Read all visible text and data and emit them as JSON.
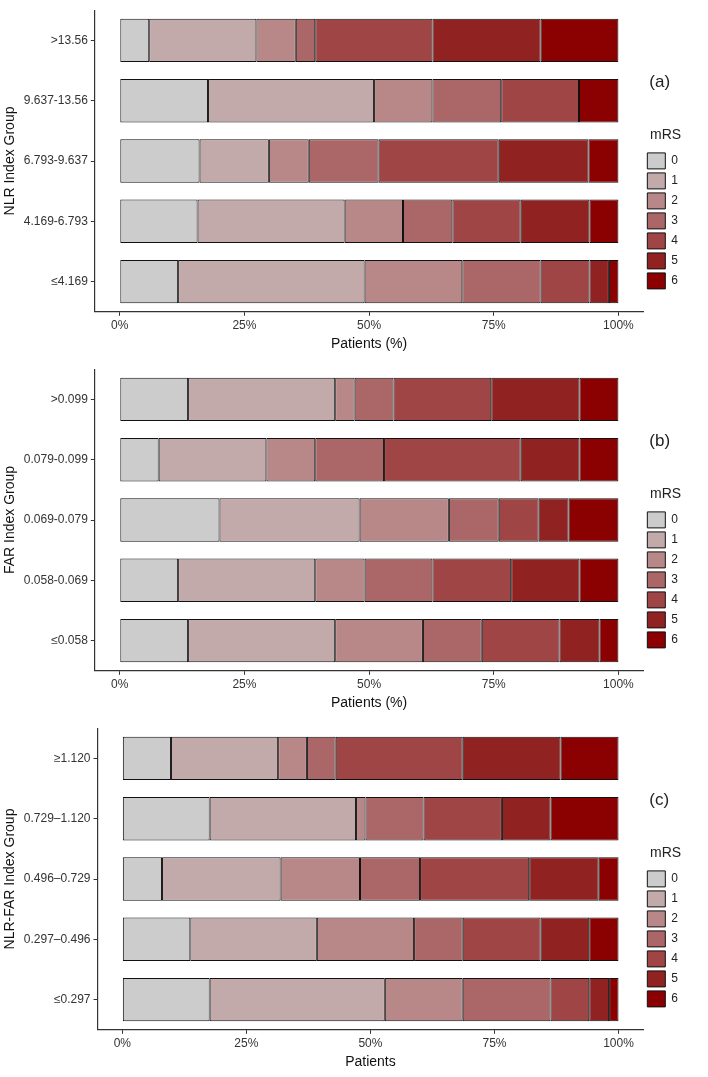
{
  "chart_data": [
    {
      "type": "bar",
      "orientation": "horizontal",
      "stacked": true,
      "ylabel": "NLR Index Group",
      "xlabel": "Patients (%)",
      "legend_title": "mRS",
      "legend": "right",
      "grid": false,
      "annotations": [
        "(a)"
      ],
      "categories": [
        ">13.56",
        "9.637-13.56",
        "6.793-9.637",
        "4.169-6.793",
        "≤4.169"
      ],
      "xlim": [
        -5,
        105
      ],
      "xticks": [
        {
          "value": 0,
          "label": "0%"
        },
        {
          "value": 25,
          "label": "25%"
        },
        {
          "value": 50,
          "label": "50%"
        },
        {
          "value": 75,
          "label": "75%"
        },
        {
          "value": 100,
          "label": "100%"
        }
      ],
      "series": [
        {
          "name": "0",
          "color": "#cccccc",
          "values": [
            5.9,
            17.7,
            16.0,
            15.6,
            11.7
          ]
        },
        {
          "name": "1",
          "color": "#c2aaaa",
          "values": [
            21.5,
            33.3,
            13.9,
            29.5,
            37.4
          ]
        },
        {
          "name": "2",
          "color": "#b88888",
          "values": [
            7.9,
            11.7,
            8.0,
            11.7,
            19.6
          ]
        },
        {
          "name": "3",
          "color": "#ab6767",
          "values": [
            3.9,
            13.8,
            14.0,
            9.9,
            15.7
          ]
        },
        {
          "name": "4",
          "color": "#a04545",
          "values": [
            23.5,
            15.6,
            24.1,
            13.7,
            9.8
          ]
        },
        {
          "name": "5",
          "color": "#912222",
          "values": [
            21.7,
            0,
            18.0,
            13.8,
            3.9
          ]
        },
        {
          "name": "6",
          "color": "#8b0000",
          "values": [
            15.6,
            7.9,
            6.0,
            5.8,
            1.9
          ]
        }
      ]
    },
    {
      "type": "bar",
      "orientation": "horizontal",
      "stacked": true,
      "ylabel": "FAR Index Group",
      "xlabel": "Patients (%)",
      "legend_title": "mRS",
      "legend": "right",
      "grid": false,
      "annotations": [
        "(b)"
      ],
      "categories": [
        ">0.099",
        "0.079-0.099",
        "0.069-0.079",
        "0.058-0.069",
        "≤0.058"
      ],
      "xlim": [
        -5,
        105
      ],
      "xticks": [
        {
          "value": 0,
          "label": "0%"
        },
        {
          "value": 25,
          "label": "25%"
        },
        {
          "value": 50,
          "label": "50%"
        },
        {
          "value": 75,
          "label": "75%"
        },
        {
          "value": 100,
          "label": "100%"
        }
      ],
      "series": [
        {
          "name": "0",
          "color": "#cccccc",
          "values": [
            13.7,
            7.8,
            20.0,
            11.7,
            13.7
          ]
        },
        {
          "name": "1",
          "color": "#c2aaaa",
          "values": [
            29.5,
            21.6,
            28.1,
            27.5,
            29.5
          ]
        },
        {
          "name": "2",
          "color": "#b88888",
          "values": [
            3.9,
            9.8,
            17.9,
            9.9,
            17.6
          ]
        },
        {
          "name": "3",
          "color": "#ab6767",
          "values": [
            7.8,
            13.8,
            10.0,
            13.6,
            11.8
          ]
        },
        {
          "name": "4",
          "color": "#a04545",
          "values": [
            19.6,
            27.4,
            8.0,
            15.8,
            15.6
          ]
        },
        {
          "name": "5",
          "color": "#912222",
          "values": [
            17.7,
            11.8,
            6.0,
            13.7,
            8.0
          ]
        },
        {
          "name": "6",
          "color": "#8b0000",
          "values": [
            7.8,
            7.8,
            10.0,
            7.8,
            3.8
          ]
        }
      ]
    },
    {
      "type": "bar",
      "orientation": "horizontal",
      "stacked": true,
      "ylabel": "NLR-FAR Index Group",
      "xlabel": "Patients",
      "legend_title": "mRS",
      "legend": "right",
      "grid": false,
      "annotations": [
        "(c)"
      ],
      "categories": [
        "≥1.120",
        "0.729–1.120",
        "0.496–0.729",
        "0.297–0.496",
        "≤0.297"
      ],
      "xlim": [
        -5,
        105
      ],
      "xticks": [
        {
          "value": 0,
          "label": "0%"
        },
        {
          "value": 25,
          "label": "25%"
        },
        {
          "value": 50,
          "label": "50%"
        },
        {
          "value": 75,
          "label": "75%"
        },
        {
          "value": 100,
          "label": "100%"
        }
      ],
      "series": [
        {
          "name": "0",
          "color": "#cccccc",
          "values": [
            9.8,
            17.6,
            8.0,
            13.7,
            17.6
          ]
        },
        {
          "name": "1",
          "color": "#c2aaaa",
          "values": [
            21.6,
            29.5,
            23.9,
            25.5,
            35.3
          ]
        },
        {
          "name": "2",
          "color": "#b88888",
          "values": [
            5.8,
            1.9,
            16.0,
            19.6,
            15.7
          ]
        },
        {
          "name": "3",
          "color": "#ab6767",
          "values": [
            5.8,
            11.7,
            12.1,
            9.8,
            17.7
          ]
        },
        {
          "name": "4",
          "color": "#a04545",
          "values": [
            25.6,
            15.8,
            22.0,
            15.7,
            7.8
          ]
        },
        {
          "name": "5",
          "color": "#912222",
          "values": [
            19.7,
            9.8,
            14.0,
            9.8,
            4.0
          ]
        },
        {
          "name": "6",
          "color": "#8b0000",
          "values": [
            11.7,
            13.7,
            4.0,
            5.9,
            1.9
          ]
        }
      ]
    }
  ]
}
